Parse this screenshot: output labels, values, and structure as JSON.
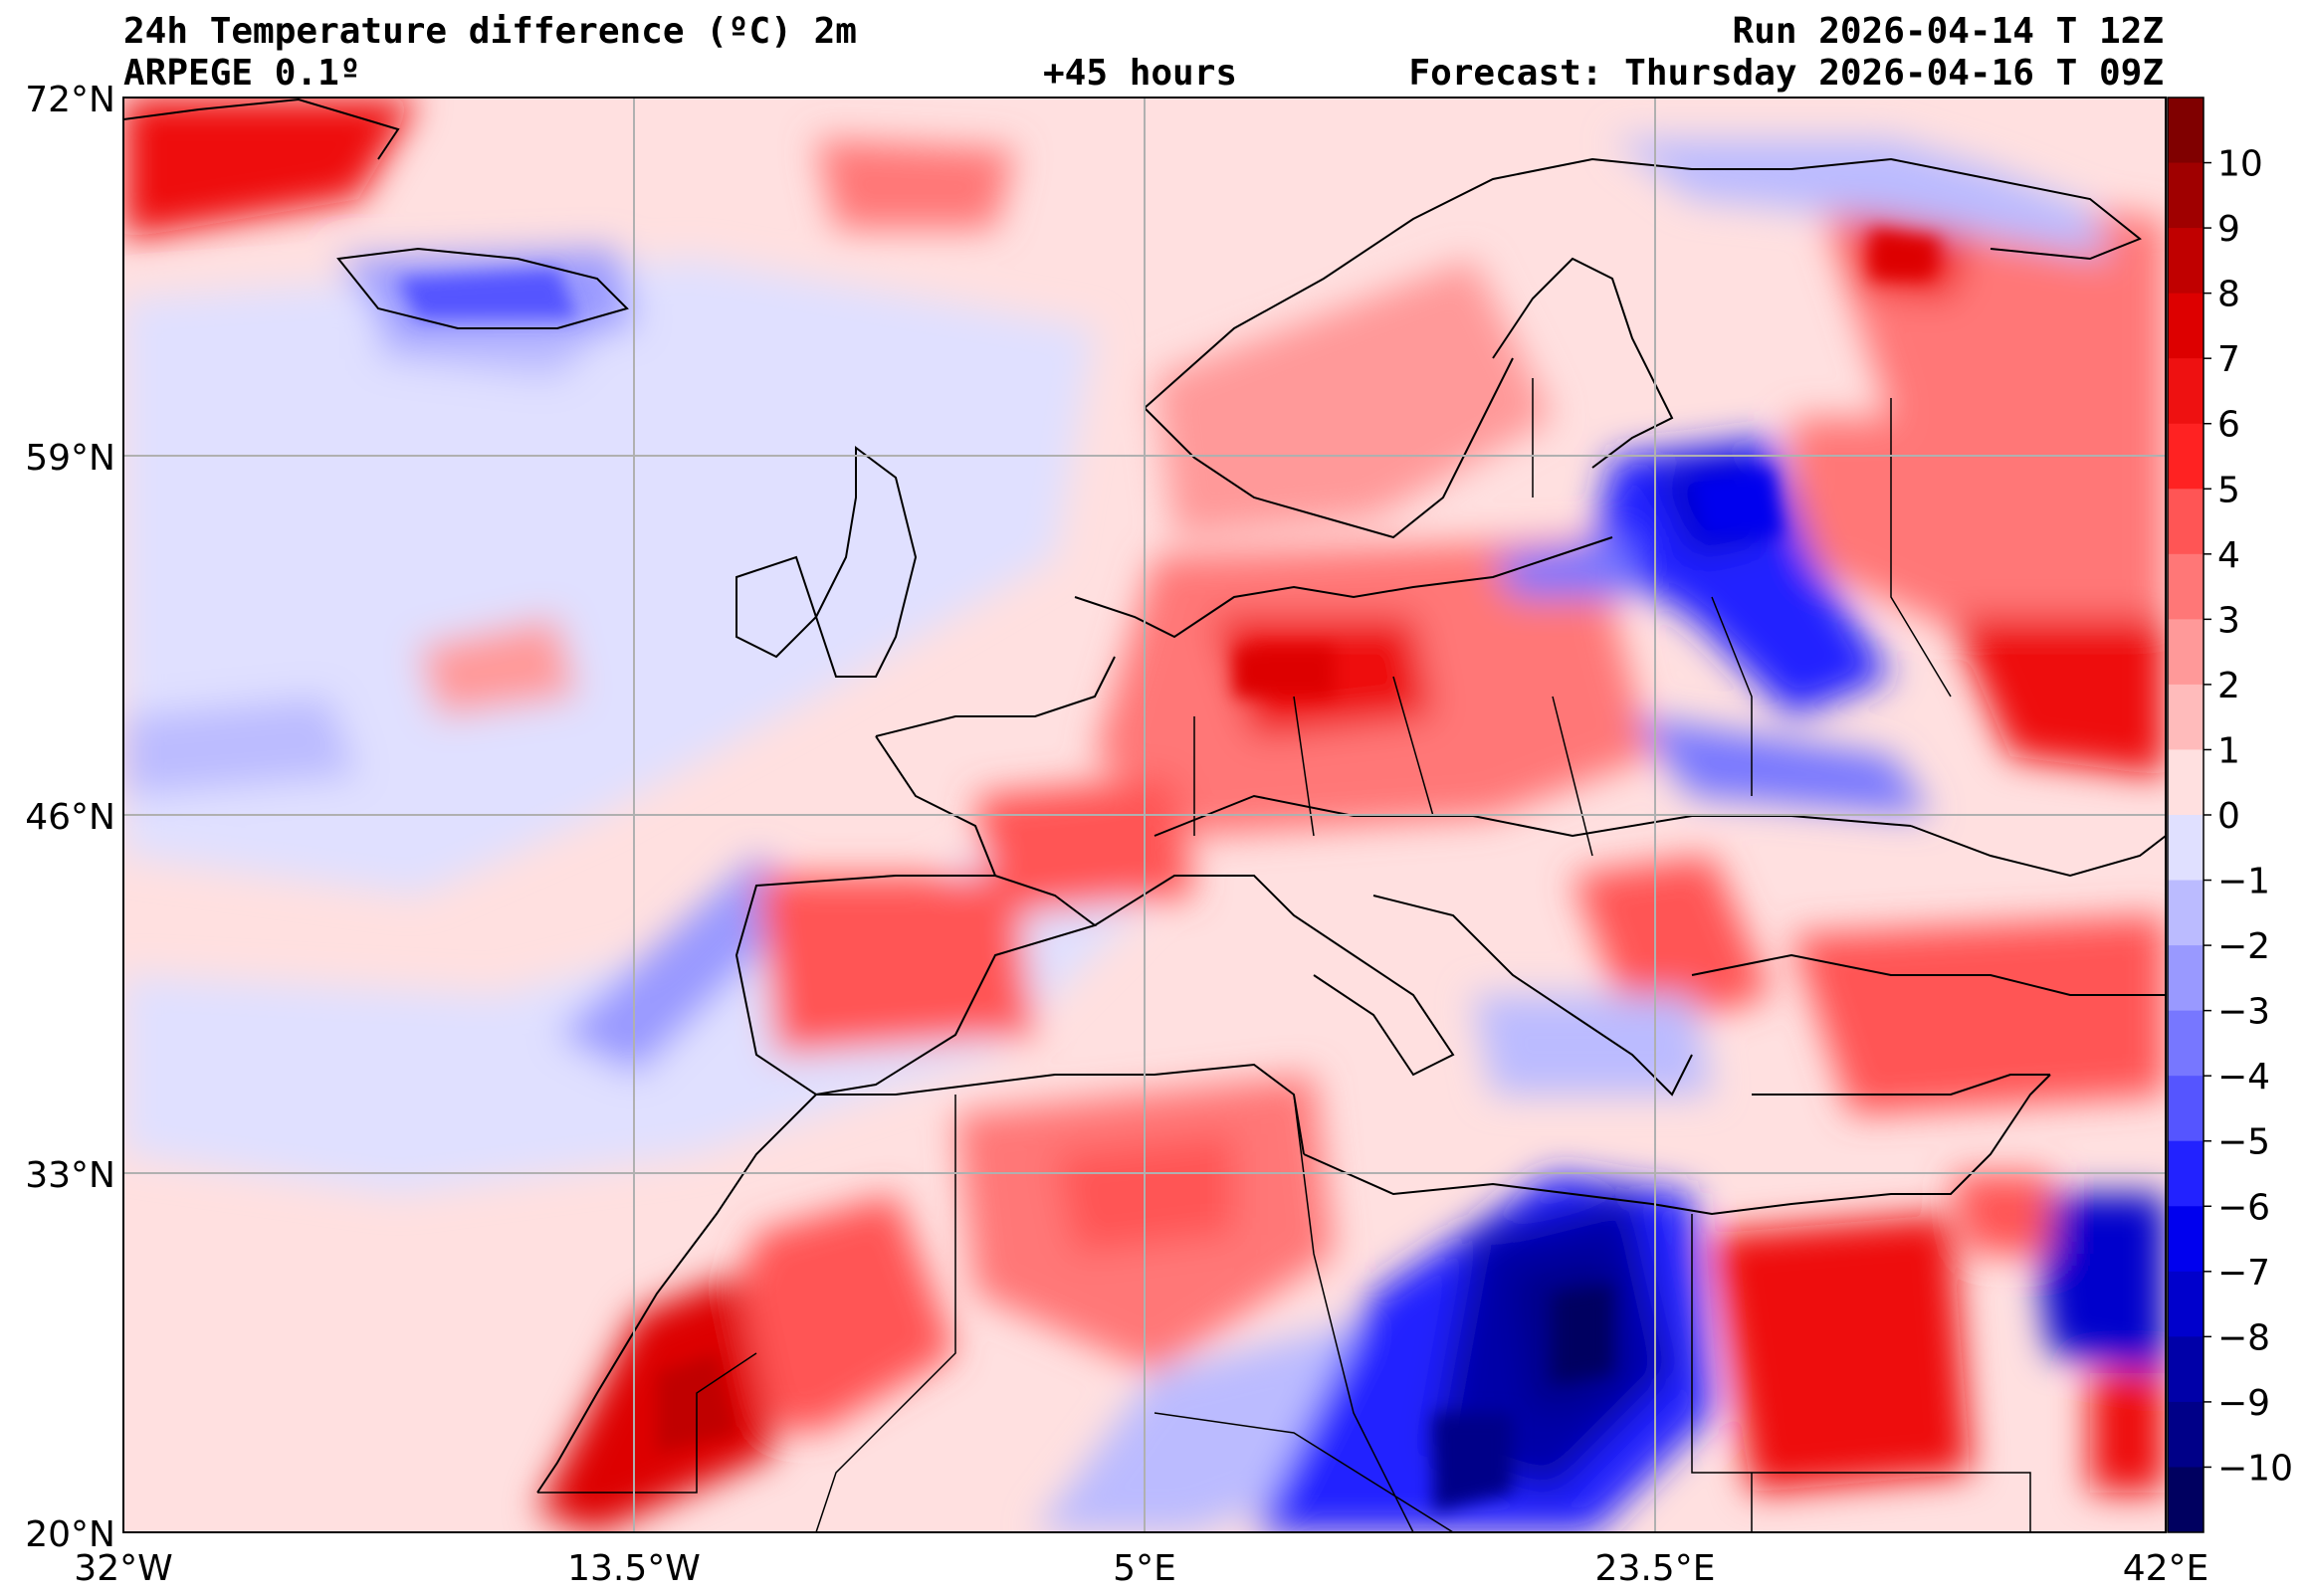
{
  "header": {
    "title": "24h Temperature difference (ºC) 2m",
    "model": "ARPEGE 0.1º",
    "lead": "+45 hours",
    "run": "Run 2026-04-14 T 12Z",
    "forecast": "Forecast: Thursday 2026-04-16 T 09Z"
  },
  "axes": {
    "lat_labels": [
      "72°N",
      "59°N",
      "46°N",
      "33°N",
      "20°N"
    ],
    "lon_labels": [
      "32°W",
      "13.5°W",
      "5°E",
      "23.5°E",
      "42°E"
    ],
    "lat_values": [
      72,
      59,
      46,
      33,
      20
    ],
    "lon_values": [
      -32,
      -13.5,
      5,
      23.5,
      42
    ],
    "lon_range": [
      -32,
      42
    ],
    "lat_range": [
      20,
      72
    ],
    "grid": true
  },
  "colorbar": {
    "labels": [
      "10",
      "9",
      "8",
      "7",
      "6",
      "5",
      "4",
      "3",
      "2",
      "1",
      "0",
      "−1",
      "−2",
      "−3",
      "−4",
      "−5",
      "−6",
      "−7",
      "−8",
      "−9",
      "−10"
    ],
    "colors": [
      "#800000",
      "#a00000",
      "#c00000",
      "#dd0000",
      "#ee1111",
      "#ff2222",
      "#ff5555",
      "#ff7777",
      "#ff9999",
      "#ffbbbb",
      "#ffe0e0",
      "#e0e0ff",
      "#bbbbff",
      "#9999ff",
      "#7777ff",
      "#5555ff",
      "#2222ff",
      "#0000ee",
      "#0000cc",
      "#0000a8",
      "#000088",
      "#000060"
    ],
    "accent_warm": "#ee3333",
    "accent_cold": "#2233dd"
  }
}
